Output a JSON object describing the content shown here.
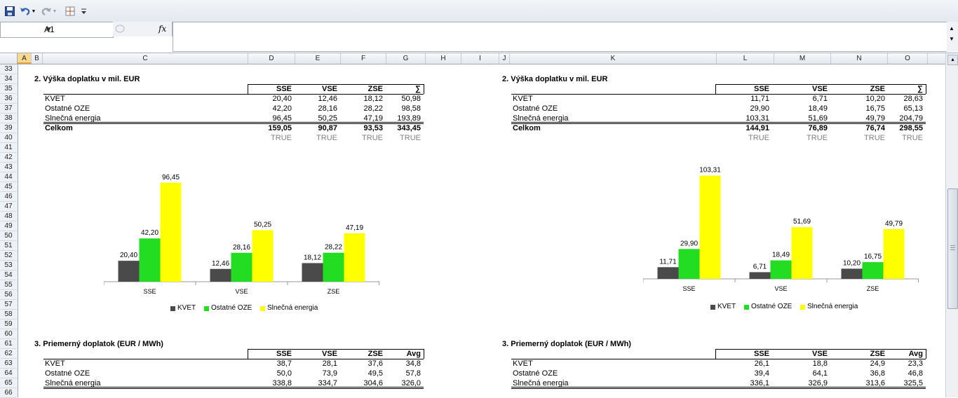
{
  "toolbar": {
    "icons": [
      "save-icon",
      "undo-icon",
      "redo-icon",
      "borders-icon",
      "customize-icon"
    ],
    "colors": {
      "save": "#2a4f9b",
      "undo": "#2e62b8",
      "redo": "#9aa4b1",
      "grid": "#c04a2a"
    }
  },
  "formula_bar": {
    "cell_ref": "A1",
    "fx_label": "fx",
    "value": ""
  },
  "columns": [
    "A",
    "B",
    "C",
    "D",
    "E",
    "F",
    "G",
    "H",
    "I",
    "J",
    "K",
    "L",
    "M",
    "N",
    "O"
  ],
  "rows": [
    "33",
    "34",
    "35",
    "36",
    "37",
    "38",
    "39",
    "40",
    "41",
    "42",
    "43",
    "44",
    "45",
    "46",
    "47",
    "48",
    "49",
    "50",
    "51",
    "52",
    "53",
    "54",
    "55",
    "56",
    "57",
    "58",
    "59",
    "60",
    "61",
    "62",
    "63",
    "64",
    "65",
    "66"
  ],
  "left": {
    "title1": "2.  Výška doplatku v mil. EUR",
    "headers1": [
      "SSE",
      "VSE",
      "ZSE",
      "∑"
    ],
    "rows1": [
      {
        "label": "KVET",
        "values": [
          "20,40",
          "12,46",
          "18,12",
          "50,98"
        ]
      },
      {
        "label": "Ostatné OZE",
        "values": [
          "42,20",
          "28,16",
          "28,22",
          "98,58"
        ]
      },
      {
        "label": "Slnečná energia",
        "values": [
          "96,45",
          "50,25",
          "47,19",
          "193,89"
        ]
      }
    ],
    "total": {
      "label": "Celkom",
      "values": [
        "159,05",
        "90,87",
        "93,53",
        "343,45"
      ]
    },
    "checks": [
      "TRUE",
      "TRUE",
      "TRUE",
      "TRUE"
    ],
    "title2": "3.  Priemerný doplatok (EUR / MWh)",
    "headers2": [
      "SSE",
      "VSE",
      "ZSE",
      "Avg"
    ],
    "rows2": [
      {
        "label": "KVET",
        "values": [
          "38,7",
          "28,1",
          "37,6",
          "34,8"
        ]
      },
      {
        "label": "Ostatné OZE",
        "values": [
          "50,0",
          "73,9",
          "49,5",
          "57,8"
        ]
      },
      {
        "label": "Slnečná energia",
        "values": [
          "338,8",
          "334,7",
          "304,6",
          "326,0"
        ]
      }
    ]
  },
  "right": {
    "title1": "2.  Výška doplatku v mil. EUR",
    "headers1": [
      "SSE",
      "VSE",
      "ZSE",
      "∑"
    ],
    "rows1": [
      {
        "label": "KVET",
        "values": [
          "11,71",
          "6,71",
          "10,20",
          "28,63"
        ]
      },
      {
        "label": "Ostatné OZE",
        "values": [
          "29,90",
          "18,49",
          "16,75",
          "65,13"
        ]
      },
      {
        "label": "Slnečná energia",
        "values": [
          "103,31",
          "51,69",
          "49,79",
          "204,79"
        ]
      }
    ],
    "total": {
      "label": "Celkom",
      "values": [
        "144,91",
        "76,89",
        "76,74",
        "298,55"
      ]
    },
    "checks": [
      "TRUE",
      "TRUE",
      "TRUE",
      "TRUE"
    ],
    "title2": "3.  Priemerný doplatok (EUR / MWh)",
    "headers2": [
      "SSE",
      "VSE",
      "ZSE",
      "Avg"
    ],
    "rows2": [
      {
        "label": "KVET",
        "values": [
          "26,1",
          "18,8",
          "24,9",
          "23,3"
        ]
      },
      {
        "label": "Ostatné OZE",
        "values": [
          "39,4",
          "64,1",
          "36,8",
          "46,8"
        ]
      },
      {
        "label": "Slnečná energia",
        "values": [
          "336,1",
          "326,9",
          "313,6",
          "325,5"
        ]
      }
    ]
  },
  "chart_data": [
    {
      "type": "bar",
      "categories": [
        "SSE",
        "VSE",
        "ZSE"
      ],
      "series": [
        {
          "name": "KVET",
          "values": [
            20.4,
            12.46,
            18.12
          ],
          "labels": [
            "20,40",
            "12,46",
            "18,12"
          ],
          "color": "#4a4a4a"
        },
        {
          "name": "Ostatné OZE",
          "values": [
            42.2,
            28.16,
            28.22
          ],
          "labels": [
            "42,20",
            "28,16",
            "28,22"
          ],
          "color": "#22dd22"
        },
        {
          "name": "Slnečná energia",
          "values": [
            96.45,
            50.25,
            47.19
          ],
          "labels": [
            "96,45",
            "50,25",
            "47,19"
          ],
          "color": "#ffff00"
        }
      ],
      "title": "",
      "xlabel": "",
      "ylabel": "",
      "ylim": [
        0,
        110
      ],
      "legend": "bottom",
      "grid": false
    },
    {
      "type": "bar",
      "categories": [
        "SSE",
        "VSE",
        "ZSE"
      ],
      "series": [
        {
          "name": "KVET",
          "values": [
            11.71,
            6.71,
            10.2
          ],
          "labels": [
            "11,71",
            "6,71",
            "10,20"
          ],
          "color": "#4a4a4a"
        },
        {
          "name": "Ostatné OZE",
          "values": [
            29.9,
            18.49,
            16.75
          ],
          "labels": [
            "29,90",
            "18,49",
            "16,75"
          ],
          "color": "#22dd22"
        },
        {
          "name": "Slnečná energia",
          "values": [
            103.31,
            51.69,
            49.79
          ],
          "labels": [
            "103,31",
            "51,69",
            "49,79"
          ],
          "color": "#ffff00"
        }
      ],
      "title": "",
      "xlabel": "",
      "ylabel": "",
      "ylim": [
        0,
        110
      ],
      "legend": "bottom",
      "grid": false
    }
  ]
}
